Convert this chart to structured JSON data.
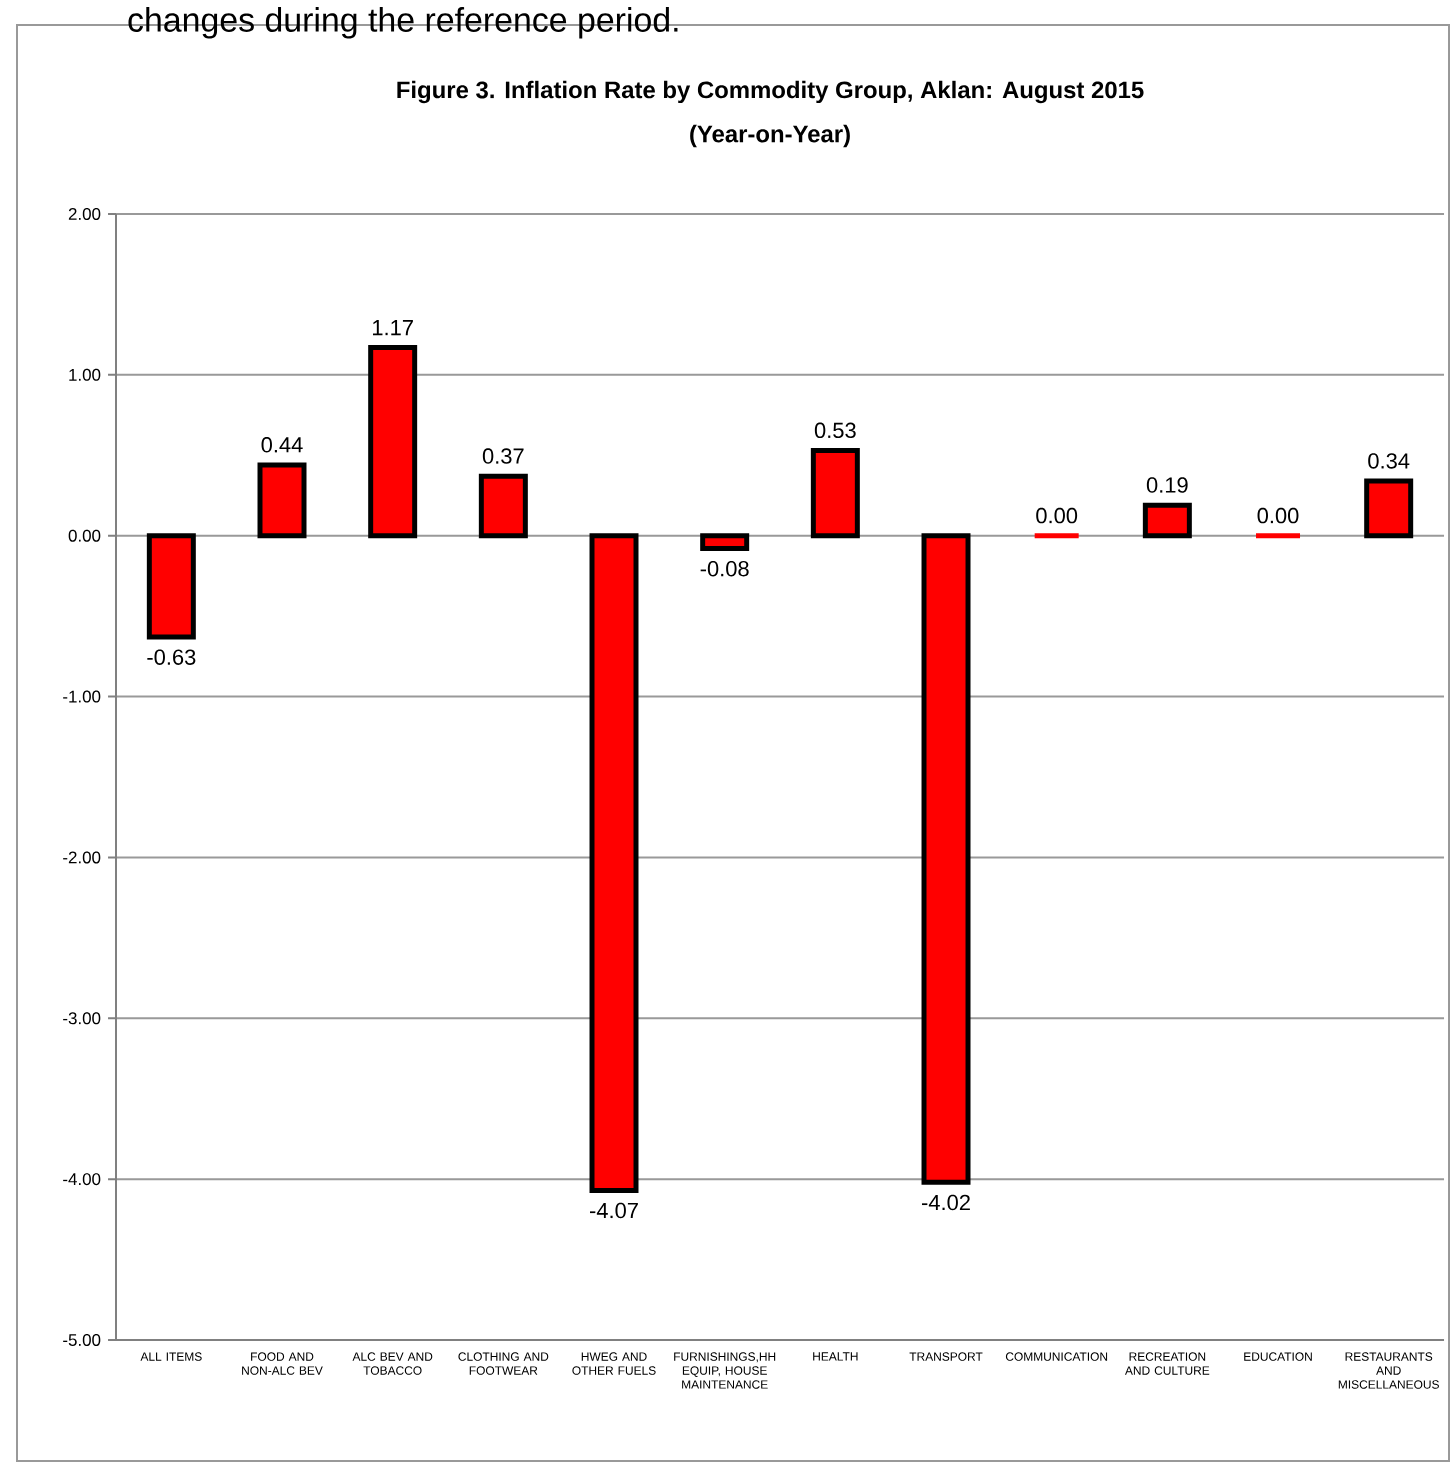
{
  "chart_data": {
    "type": "bar",
    "title": "Figure 3. Inflation Rate by Commodity Group, Aklan: August 2015",
    "subtitle": "(Year-on-Year)",
    "annotations": [
      "changes during the reference period."
    ],
    "categories": [
      "ALL ITEMS",
      "FOOD AND NON-ALC BEV",
      "ALC BEV AND TOBACCO",
      "CLOTHING AND FOOTWEAR",
      "HWEG AND OTHER FUELS",
      "FURNISHINGS,HH EQUIP, HOUSE MAINTENANCE",
      "HEALTH",
      "TRANSPORT",
      "COMMUNICATION",
      "RECREATION AND CULTURE",
      "EDUCATION",
      "RESTAURANTS AND MISCELLANEOUS"
    ],
    "values": [
      -0.63,
      0.44,
      1.17,
      0.37,
      -4.07,
      -0.08,
      0.53,
      -4.02,
      0.0,
      0.19,
      0.0,
      0.34
    ],
    "color": "#ff0000",
    "ylim": [
      -5,
      2
    ],
    "yticks": [
      {
        "value": -5,
        "label": "-5.00"
      },
      {
        "value": -4,
        "label": "-4.00"
      },
      {
        "value": -3,
        "label": "-3.00"
      },
      {
        "value": -2,
        "label": "-2.00"
      },
      {
        "value": -1,
        "label": "-1.00"
      },
      {
        "value": 0,
        "label": "0.00"
      },
      {
        "value": 1,
        "label": "1.00"
      },
      {
        "value": 2,
        "label": "2.00"
      }
    ],
    "value_labels": [
      "-0.63",
      "0.44",
      "1.17",
      "0.37",
      "-4.07",
      "-0.08",
      "0.53",
      "-4.02",
      "0.00",
      "0.19",
      "0.00",
      "0.34"
    ],
    "grid": "y"
  }
}
